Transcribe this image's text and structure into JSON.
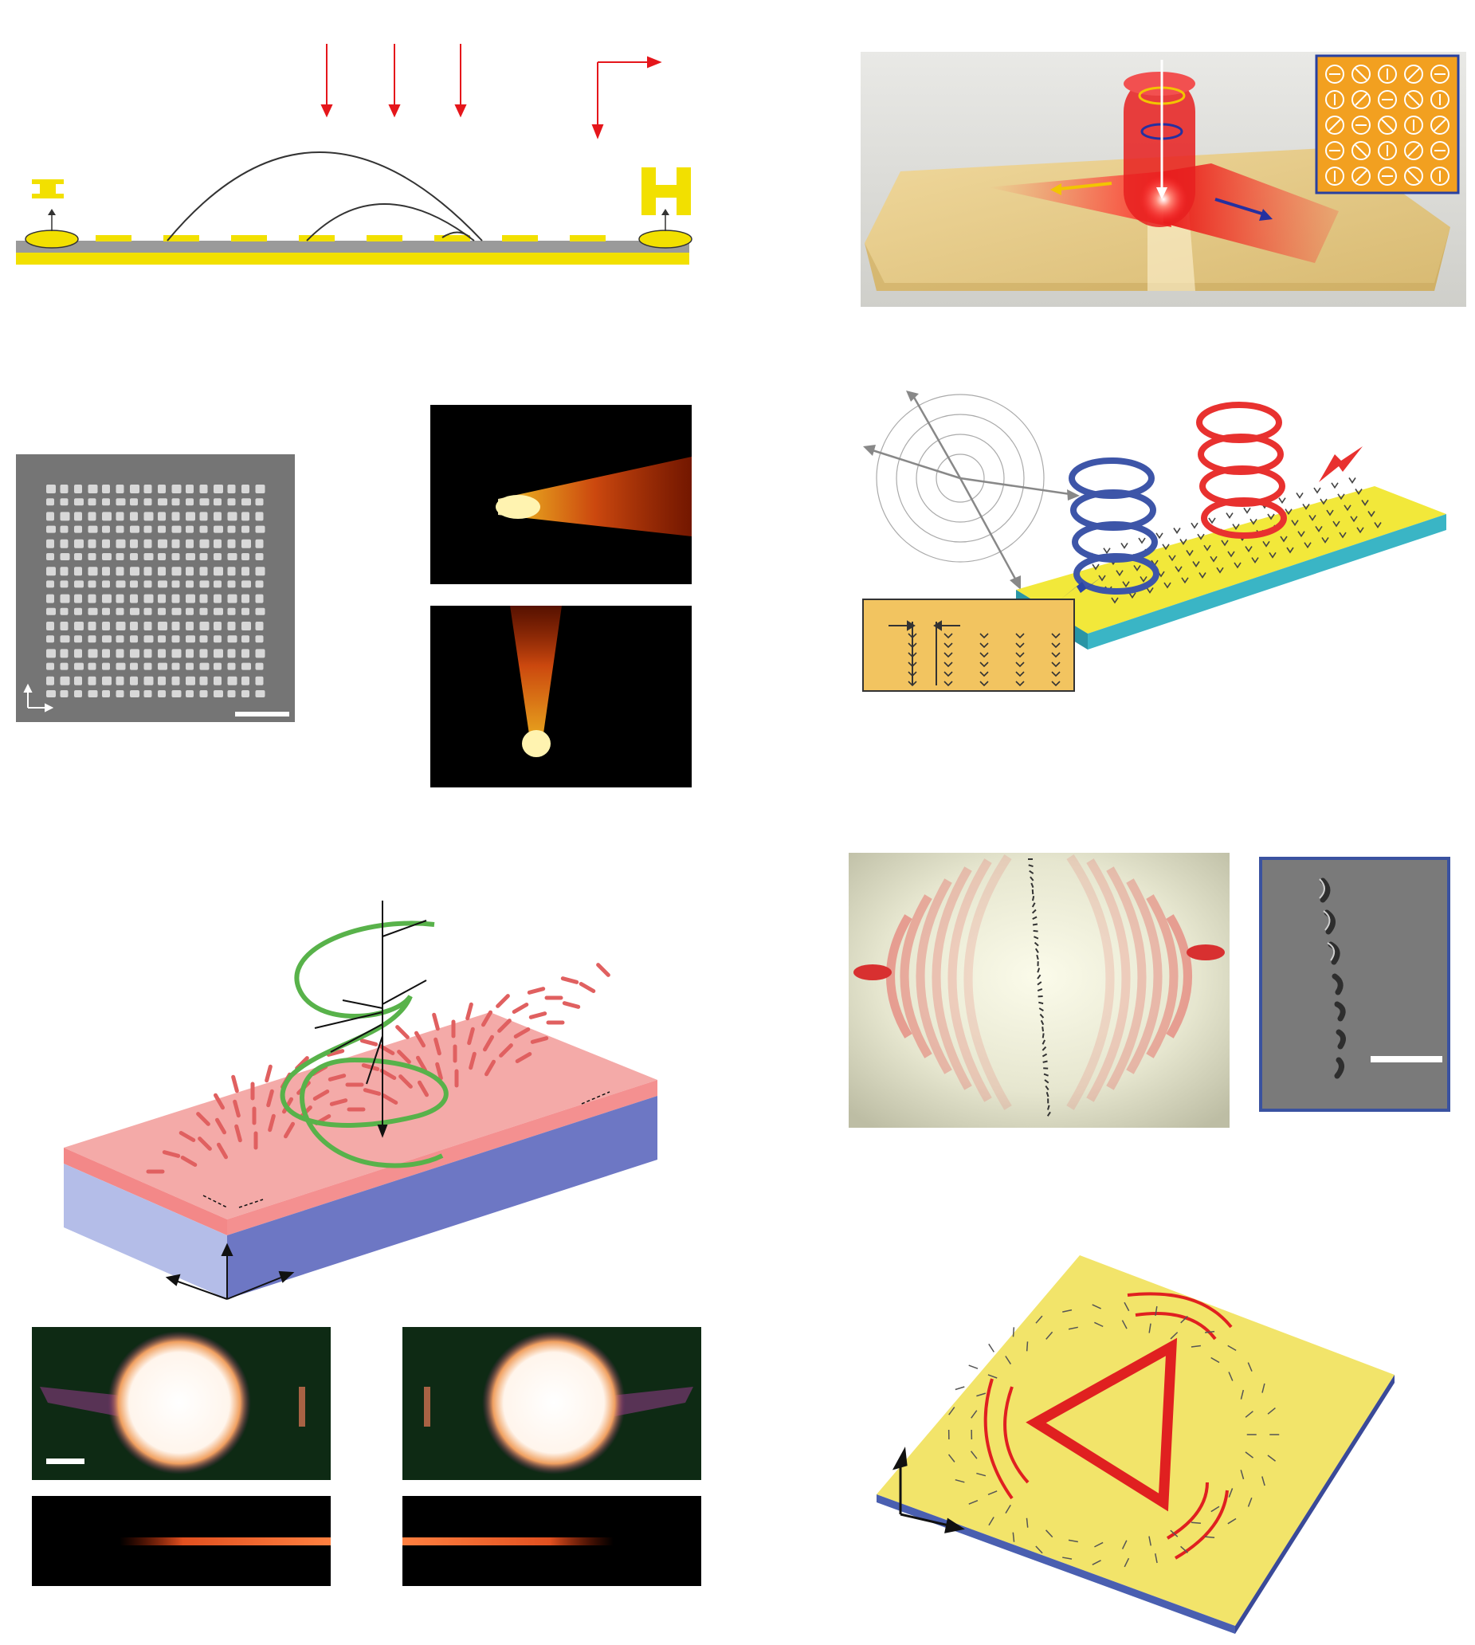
{
  "figure": {
    "panels": [
      {
        "id": "a",
        "kind": "schematic",
        "icons": [
          "antenna-small-icon",
          "antenna-large-icon",
          "incident-arrow-icon",
          "polarization-corner-arrow-icon"
        ]
      },
      {
        "id": "b",
        "kind": "render",
        "icons": [
          "spin-arrow-icon",
          "inset-metasurface-icon"
        ]
      },
      {
        "id": "c",
        "kind": "sem-image",
        "icons": [
          "axis-icon",
          "scale-bar-icon"
        ]
      },
      {
        "id": "d",
        "kind": "near-field-images"
      },
      {
        "id": "e",
        "kind": "render",
        "icons": [
          "helix-red-icon",
          "helix-blue-icon",
          "radial-arrows-icon"
        ]
      },
      {
        "id": "f",
        "kind": "render",
        "icons": [
          "helix-green-icon",
          "vortex-arrows-icon"
        ]
      },
      {
        "id": "g",
        "kind": "near-field-images",
        "icons": [
          "scale-bar-icon"
        ]
      },
      {
        "id": "h",
        "kind": "render",
        "icons": [
          "wavefront-icon"
        ]
      },
      {
        "id": "i",
        "kind": "sem-image",
        "icons": [
          "scale-bar-icon"
        ]
      },
      {
        "id": "j",
        "kind": "render",
        "icons": [
          "triangle-lens-icon",
          "axis-icon"
        ]
      }
    ],
    "colors": {
      "gold": "#f2e000",
      "metal_grey": "#9a9a9a",
      "red_arrow": "#e5161b",
      "slab_pink": "#f19a9a",
      "slab_blue": "#6d77c4",
      "slab_yellow": "#efe04e",
      "slab_cyan": "#38b8c7",
      "helix_green": "#58b24a",
      "helix_red": "#e8312f",
      "helix_blue": "#3d55a8",
      "sem_grey": "#757575",
      "inset_border": "#3a52a0"
    }
  }
}
